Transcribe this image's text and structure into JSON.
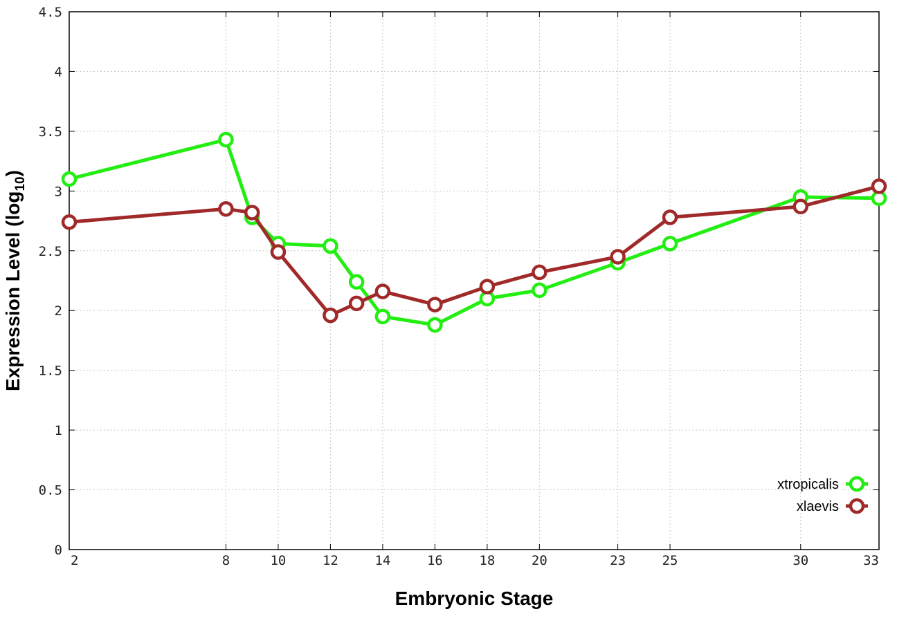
{
  "chart_data": {
    "type": "line",
    "title": "",
    "xlabel": "Embryonic Stage",
    "ylabel": "Expression Level (log10)",
    "ylabel_main": "Expression Level (log",
    "ylabel_sub": "10",
    "ylabel_close": ")",
    "x": [
      2,
      8,
      9,
      10,
      12,
      13,
      14,
      16,
      18,
      20,
      23,
      25,
      30,
      33
    ],
    "xticks": [
      "2",
      "8",
      "10",
      "12",
      "14",
      "16",
      "18",
      "20",
      "23",
      "25",
      "30",
      "33"
    ],
    "yticks": [
      "0",
      "0.5",
      "1",
      "1.5",
      "2",
      "2.5",
      "3",
      "3.5",
      "4",
      "4.5"
    ],
    "xlim": [
      2,
      33
    ],
    "ylim": [
      0,
      4.5
    ],
    "grid": true,
    "legend_position": "bottom-right",
    "series": [
      {
        "name": "xtropicalis",
        "color": "#22ee11",
        "values": [
          3.1,
          3.43,
          2.78,
          2.56,
          2.54,
          2.24,
          1.95,
          1.88,
          2.1,
          2.17,
          2.4,
          2.56,
          2.95,
          2.94
        ]
      },
      {
        "name": "xlaevis",
        "color": "#a02a2a",
        "values": [
          2.74,
          2.85,
          2.82,
          2.49,
          1.96,
          2.06,
          2.16,
          2.05,
          2.2,
          2.32,
          2.45,
          2.78,
          2.87,
          3.04
        ]
      }
    ]
  }
}
